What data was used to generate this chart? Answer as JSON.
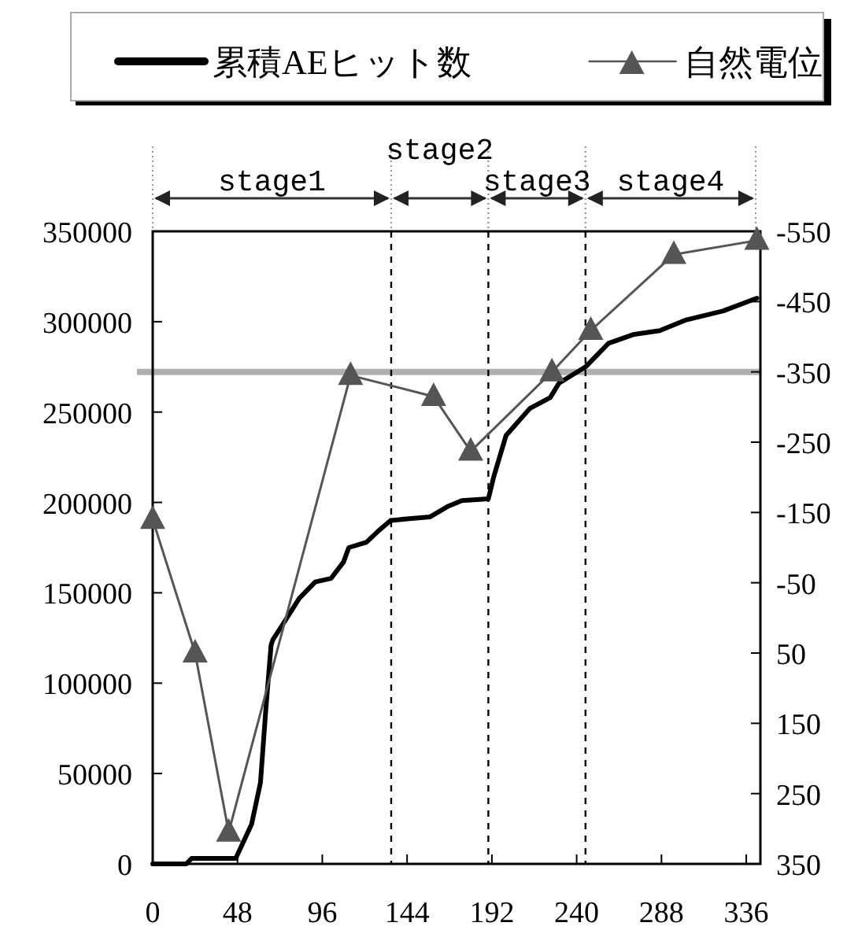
{
  "chart_data": {
    "type": "line",
    "xlim": [
      0,
      344
    ],
    "xticks": [
      0,
      48,
      96,
      144,
      192,
      240,
      288,
      336
    ],
    "ylim": [
      0,
      350000
    ],
    "yticks": [
      0,
      50000,
      100000,
      150000,
      200000,
      250000,
      300000,
      350000
    ],
    "y2lim": [
      350,
      -550
    ],
    "y2ticks": [
      350,
      250,
      150,
      50,
      -50,
      -150,
      -250,
      -350,
      -450,
      -550
    ],
    "grid": false,
    "legend": "top",
    "series": [
      {
        "name": "累積AEヒット数",
        "color": "#000000",
        "marker": "none",
        "x": [
          0,
          19,
          22,
          47,
          56,
          61,
          64,
          67,
          68,
          74,
          83,
          92,
          101,
          108,
          111,
          121,
          127.5,
          134.7,
          145,
          157,
          167.5,
          175,
          190,
          193,
          200,
          213.5,
          225,
          230,
          245,
          258,
          272.5,
          287,
          302,
          323,
          342
        ],
        "values": [
          0,
          0,
          3000,
          3000,
          22000,
          45000,
          85000,
          121000,
          124000,
          133000,
          147000,
          156000,
          158000,
          167000,
          175000,
          178000,
          184000,
          190000,
          191000,
          192000,
          198000,
          201000,
          202000,
          214000,
          237000,
          252000,
          258000,
          266000,
          275000,
          288000,
          293000,
          295000,
          301000,
          306000,
          313000
        ]
      },
      {
        "name": "自然電位",
        "color": "#555555",
        "marker": "triangle",
        "axis": "y2",
        "x": [
          0,
          24,
          43,
          112,
          159,
          180,
          226,
          248,
          295,
          342
        ],
        "values": [
          -140,
          50,
          305,
          -345,
          -315,
          -237,
          -350,
          -409,
          -517,
          -537
        ]
      }
    ],
    "ref_lines": [
      {
        "axis": "y2",
        "value": -350,
        "color": "#b0b0b0",
        "line_style": "solid"
      },
      {
        "axis": "x",
        "value": 135,
        "color": "#000000",
        "line_style": "dashed"
      },
      {
        "axis": "x",
        "value": 190,
        "color": "#000000",
        "line_style": "dashed"
      },
      {
        "axis": "x",
        "value": 245,
        "color": "#000000",
        "line_style": "dashed"
      }
    ],
    "annotations": [
      "stage1",
      "stage2",
      "stage3",
      "stage4"
    ]
  }
}
